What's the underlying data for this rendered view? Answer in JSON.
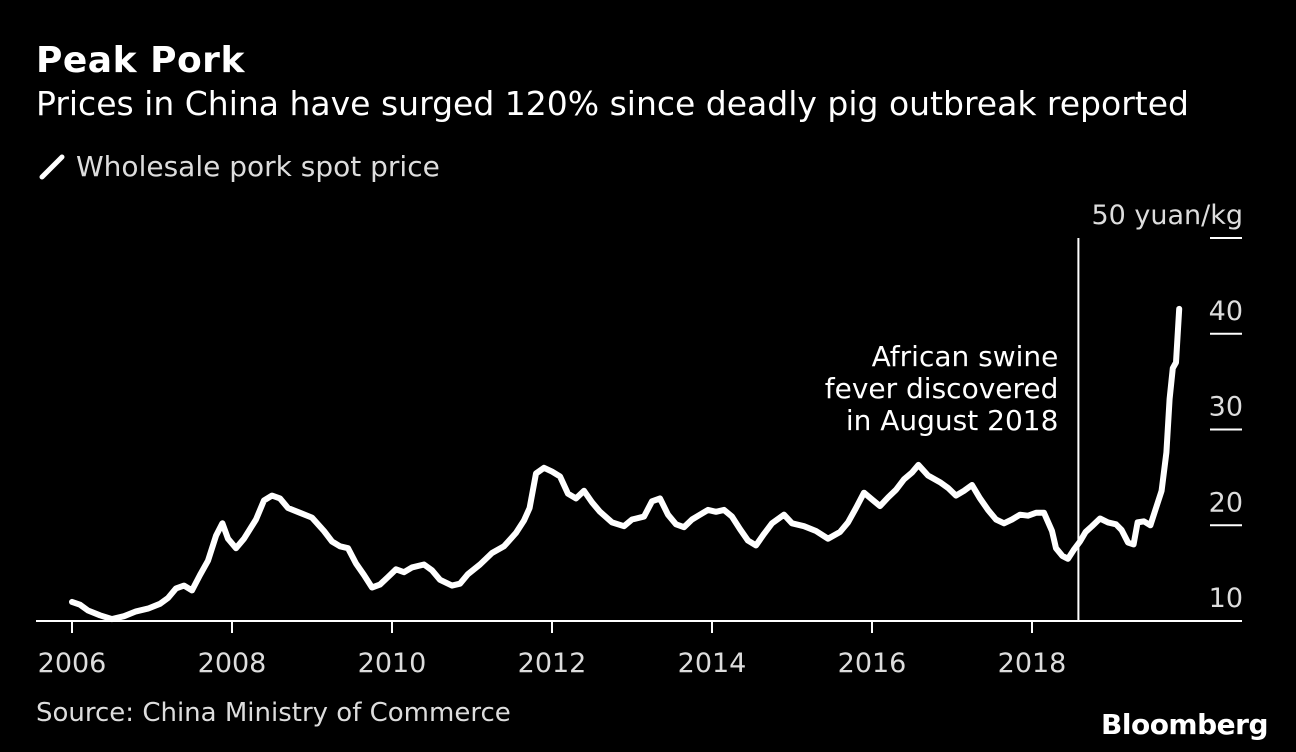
{
  "header": {
    "title": "Peak Pork",
    "subtitle": "Prices in China have surged 120% since deadly pig outbreak reported"
  },
  "legend": {
    "label": "Wholesale pork spot price"
  },
  "annotation": {
    "lines": [
      "African swine",
      "fever discovered",
      "in August 2018"
    ],
    "x": 2018.58
  },
  "footer": {
    "source": "Source: China Ministry of Commerce",
    "brand": "Bloomberg"
  },
  "chart_data": {
    "type": "line",
    "title": "Peak Pork",
    "ylabel": "50 yuan/kg",
    "xlim": [
      2006,
      2020.05
    ],
    "ylim": [
      10,
      50
    ],
    "xticks": [
      2006,
      2008,
      2010,
      2012,
      2014,
      2016,
      2018
    ],
    "yticks": [
      {
        "value": 50,
        "label": "50 yuan/kg"
      },
      {
        "value": 40,
        "label": "40"
      },
      {
        "value": 30,
        "label": "30"
      },
      {
        "value": 20,
        "label": "20"
      },
      {
        "value": 10,
        "label": "10"
      }
    ],
    "colors": {
      "line": "#ffffff",
      "background": "#000000",
      "axis": "#ffffff"
    },
    "series": [
      {
        "name": "Wholesale pork spot price",
        "points": [
          [
            2006.0,
            12.0
          ],
          [
            2006.1,
            11.7
          ],
          [
            2006.2,
            11.1
          ],
          [
            2006.35,
            10.6
          ],
          [
            2006.5,
            10.2
          ],
          [
            2006.65,
            10.5
          ],
          [
            2006.8,
            11.0
          ],
          [
            2006.95,
            11.3
          ],
          [
            2007.1,
            11.8
          ],
          [
            2007.2,
            12.4
          ],
          [
            2007.3,
            13.4
          ],
          [
            2007.4,
            13.7
          ],
          [
            2007.5,
            13.2
          ],
          [
            2007.6,
            14.8
          ],
          [
            2007.7,
            16.3
          ],
          [
            2007.8,
            18.9
          ],
          [
            2007.88,
            20.2
          ],
          [
            2007.95,
            18.6
          ],
          [
            2008.05,
            17.6
          ],
          [
            2008.15,
            18.6
          ],
          [
            2008.3,
            20.6
          ],
          [
            2008.4,
            22.6
          ],
          [
            2008.5,
            23.1
          ],
          [
            2008.6,
            22.8
          ],
          [
            2008.7,
            21.8
          ],
          [
            2008.85,
            21.3
          ],
          [
            2009.0,
            20.8
          ],
          [
            2009.15,
            19.4
          ],
          [
            2009.25,
            18.3
          ],
          [
            2009.35,
            17.8
          ],
          [
            2009.45,
            17.6
          ],
          [
            2009.55,
            16.0
          ],
          [
            2009.65,
            14.8
          ],
          [
            2009.75,
            13.5
          ],
          [
            2009.85,
            13.8
          ],
          [
            2009.95,
            14.6
          ],
          [
            2010.05,
            15.4
          ],
          [
            2010.15,
            15.1
          ],
          [
            2010.25,
            15.6
          ],
          [
            2010.4,
            15.9
          ],
          [
            2010.5,
            15.3
          ],
          [
            2010.6,
            14.3
          ],
          [
            2010.75,
            13.7
          ],
          [
            2010.85,
            13.9
          ],
          [
            2010.95,
            14.9
          ],
          [
            2011.1,
            15.9
          ],
          [
            2011.25,
            17.1
          ],
          [
            2011.4,
            17.8
          ],
          [
            2011.55,
            19.2
          ],
          [
            2011.65,
            20.5
          ],
          [
            2011.72,
            21.8
          ],
          [
            2011.8,
            25.4
          ],
          [
            2011.9,
            26.0
          ],
          [
            2012.0,
            25.6
          ],
          [
            2012.1,
            25.1
          ],
          [
            2012.2,
            23.3
          ],
          [
            2012.3,
            22.8
          ],
          [
            2012.4,
            23.6
          ],
          [
            2012.5,
            22.4
          ],
          [
            2012.6,
            21.4
          ],
          [
            2012.75,
            20.3
          ],
          [
            2012.9,
            19.9
          ],
          [
            2013.0,
            20.6
          ],
          [
            2013.15,
            20.9
          ],
          [
            2013.25,
            22.5
          ],
          [
            2013.35,
            22.8
          ],
          [
            2013.45,
            21.1
          ],
          [
            2013.55,
            20.1
          ],
          [
            2013.65,
            19.8
          ],
          [
            2013.75,
            20.6
          ],
          [
            2013.85,
            21.1
          ],
          [
            2013.95,
            21.6
          ],
          [
            2014.05,
            21.4
          ],
          [
            2014.15,
            21.6
          ],
          [
            2014.25,
            20.9
          ],
          [
            2014.35,
            19.6
          ],
          [
            2014.45,
            18.4
          ],
          [
            2014.55,
            17.9
          ],
          [
            2014.65,
            19.1
          ],
          [
            2014.75,
            20.2
          ],
          [
            2014.9,
            21.1
          ],
          [
            2015.0,
            20.2
          ],
          [
            2015.15,
            19.9
          ],
          [
            2015.3,
            19.4
          ],
          [
            2015.45,
            18.6
          ],
          [
            2015.6,
            19.3
          ],
          [
            2015.7,
            20.3
          ],
          [
            2015.8,
            21.8
          ],
          [
            2015.9,
            23.4
          ],
          [
            2016.0,
            22.7
          ],
          [
            2016.1,
            22.0
          ],
          [
            2016.2,
            22.9
          ],
          [
            2016.3,
            23.7
          ],
          [
            2016.4,
            24.8
          ],
          [
            2016.5,
            25.5
          ],
          [
            2016.58,
            26.3
          ],
          [
            2016.7,
            25.2
          ],
          [
            2016.85,
            24.5
          ],
          [
            2016.95,
            23.9
          ],
          [
            2017.05,
            23.1
          ],
          [
            2017.15,
            23.6
          ],
          [
            2017.25,
            24.2
          ],
          [
            2017.35,
            22.8
          ],
          [
            2017.45,
            21.6
          ],
          [
            2017.55,
            20.6
          ],
          [
            2017.65,
            20.2
          ],
          [
            2017.75,
            20.6
          ],
          [
            2017.85,
            21.1
          ],
          [
            2017.95,
            21.0
          ],
          [
            2018.05,
            21.3
          ],
          [
            2018.15,
            21.3
          ],
          [
            2018.25,
            19.4
          ],
          [
            2018.3,
            17.6
          ],
          [
            2018.38,
            16.8
          ],
          [
            2018.45,
            16.5
          ],
          [
            2018.52,
            17.4
          ],
          [
            2018.6,
            18.3
          ],
          [
            2018.67,
            19.3
          ],
          [
            2018.75,
            19.9
          ],
          [
            2018.85,
            20.7
          ],
          [
            2018.95,
            20.3
          ],
          [
            2019.05,
            20.1
          ],
          [
            2019.12,
            19.5
          ],
          [
            2019.2,
            18.2
          ],
          [
            2019.27,
            18.0
          ],
          [
            2019.32,
            20.3
          ],
          [
            2019.4,
            20.4
          ],
          [
            2019.48,
            20.0
          ],
          [
            2019.55,
            21.8
          ],
          [
            2019.62,
            23.6
          ],
          [
            2019.68,
            27.6
          ],
          [
            2019.72,
            33.2
          ],
          [
            2019.76,
            36.4
          ],
          [
            2019.8,
            37.0
          ],
          [
            2019.84,
            42.6
          ]
        ]
      }
    ]
  }
}
